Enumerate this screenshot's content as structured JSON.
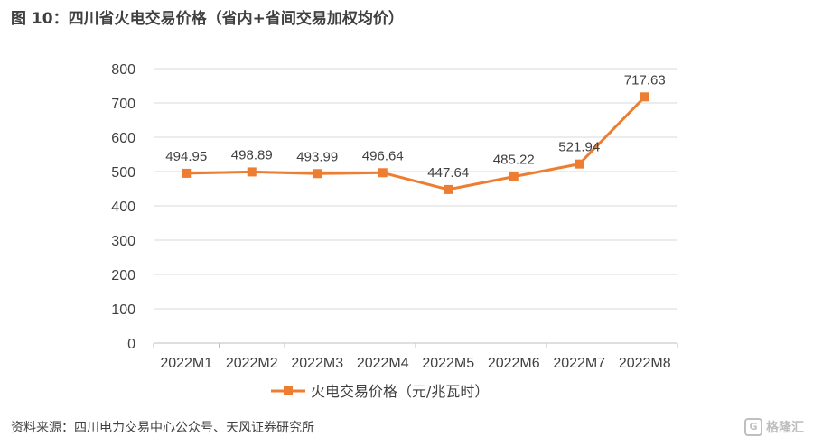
{
  "header": {
    "title": "图 10：四川省火电交易价格（省内+省间交易加权均价）"
  },
  "footer": {
    "source": "资料来源：四川电力交易中心公众号、天风证券研究所",
    "watermark": "格隆汇",
    "watermark_badge": "G"
  },
  "chart_data": {
    "type": "line",
    "title": "",
    "xlabel": "",
    "ylabel": "",
    "categories": [
      "2022M1",
      "2022M2",
      "2022M3",
      "2022M4",
      "2022M5",
      "2022M6",
      "2022M7",
      "2022M8"
    ],
    "series": [
      {
        "name": "火电交易价格（元/兆瓦时）",
        "values": [
          494.95,
          498.89,
          493.99,
          496.64,
          447.64,
          485.22,
          521.94,
          717.63
        ],
        "labels": [
          "494.95",
          "498.89",
          "493.99",
          "496.64",
          "447.64",
          "485.22",
          "521.94",
          "717.63"
        ],
        "color": "#ED7D31"
      }
    ],
    "ylim": [
      0,
      800
    ],
    "yticks": [
      0,
      100,
      200,
      300,
      400,
      500,
      600,
      700,
      800
    ],
    "grid": true,
    "legend": "bottom",
    "colors": {
      "line": "#ED7D31",
      "grid": "#d9d9d9",
      "axis": "#bfbfbf",
      "text": "#404040"
    }
  }
}
